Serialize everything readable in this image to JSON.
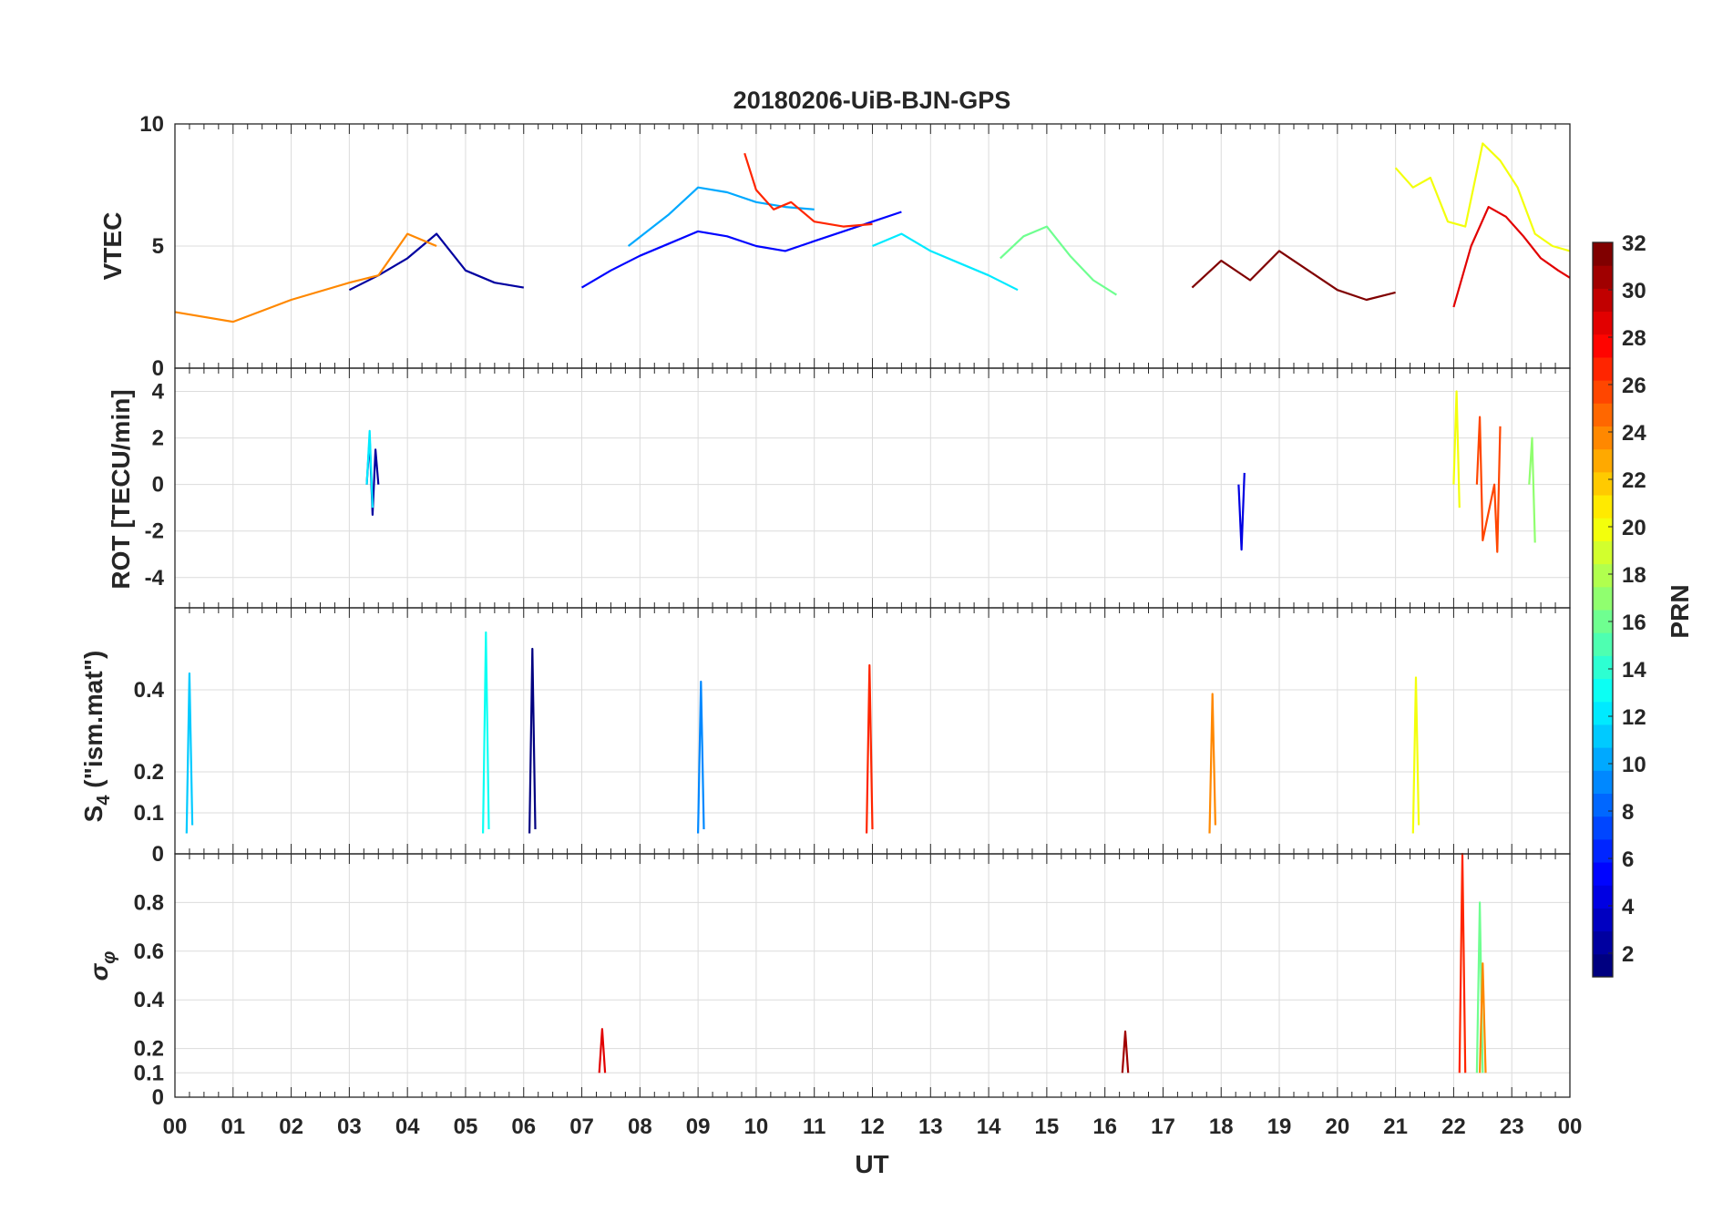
{
  "chart_data": {
    "type": "line",
    "title": "20180206-UiB-BJN-GPS",
    "xlabel": "UT",
    "x_ticks": [
      "00",
      "01",
      "02",
      "03",
      "04",
      "05",
      "06",
      "07",
      "08",
      "09",
      "10",
      "11",
      "12",
      "13",
      "14",
      "15",
      "16",
      "17",
      "18",
      "19",
      "20",
      "21",
      "22",
      "23",
      "00"
    ],
    "xlim": [
      0,
      24
    ],
    "grid": true,
    "colorbar": {
      "label": "PRN",
      "range": [
        1,
        32
      ],
      "ticks": [
        "2",
        "4",
        "6",
        "8",
        "10",
        "12",
        "14",
        "16",
        "18",
        "20",
        "22",
        "24",
        "26",
        "28",
        "30",
        "32"
      ],
      "colormap": "jet"
    },
    "panels": [
      {
        "id": "vtec",
        "ylabel": "VTEC",
        "ylim": [
          0,
          10
        ],
        "y_ticks": [
          "0",
          "5",
          "10"
        ],
        "series": [
          {
            "prn": 2,
            "x": [
              3.0,
              3.5,
              4.0,
              4.5,
              5.0,
              5.5,
              6.0
            ],
            "y": [
              3.2,
              3.8,
              4.5,
              5.5,
              4.0,
              3.5,
              3.3
            ]
          },
          {
            "prn": 5,
            "x": [
              7.0,
              7.5,
              8.0,
              8.5,
              9.0,
              9.5,
              10.0,
              10.5,
              11.0,
              11.5,
              12.0,
              12.5
            ],
            "y": [
              3.3,
              4.0,
              4.6,
              5.1,
              5.6,
              5.4,
              5.0,
              4.8,
              5.2,
              5.6,
              6.0,
              6.4
            ]
          },
          {
            "prn": 10,
            "x": [
              7.8,
              8.5,
              9.0,
              9.5,
              10.0,
              10.5,
              11.0
            ],
            "y": [
              5.0,
              6.3,
              7.4,
              7.2,
              6.8,
              6.6,
              6.5
            ]
          },
          {
            "prn": 12,
            "x": [
              12.0,
              12.5,
              13.0,
              13.5,
              14.0,
              14.5
            ],
            "y": [
              5.0,
              5.5,
              4.8,
              4.3,
              3.8,
              3.2
            ]
          },
          {
            "prn": 16,
            "x": [
              14.2,
              14.6,
              15.0,
              15.4,
              15.8,
              16.2
            ],
            "y": [
              4.5,
              5.4,
              5.8,
              4.6,
              3.6,
              3.0
            ]
          },
          {
            "prn": 20,
            "x": [
              21.0,
              21.3,
              21.6,
              21.9,
              22.2,
              22.5,
              22.8,
              23.1,
              23.4,
              23.7,
              24.0
            ],
            "y": [
              8.2,
              7.4,
              7.8,
              6.0,
              5.8,
              9.2,
              8.5,
              7.4,
              5.5,
              5.0,
              4.8
            ]
          },
          {
            "prn": 24,
            "x": [
              0.0,
              1.0,
              2.0,
              3.0,
              3.5,
              4.0,
              4.5
            ],
            "y": [
              2.3,
              1.9,
              2.8,
              3.5,
              3.8,
              5.5,
              5.0
            ]
          },
          {
            "prn": 27,
            "x": [
              9.8,
              10.0,
              10.3,
              10.6,
              11.0,
              11.5,
              12.0
            ],
            "y": [
              8.8,
              7.3,
              6.5,
              6.8,
              6.0,
              5.8,
              5.9
            ]
          },
          {
            "prn": 29,
            "x": [
              22.0,
              22.3,
              22.6,
              22.9,
              23.2,
              23.5,
              23.8,
              24.0
            ],
            "y": [
              2.5,
              5.0,
              6.6,
              6.2,
              5.4,
              4.5,
              4.0,
              3.7
            ]
          },
          {
            "prn": 32,
            "x": [
              17.5,
              18.0,
              18.5,
              19.0,
              19.5,
              20.0,
              20.5,
              21.0
            ],
            "y": [
              3.3,
              4.4,
              3.6,
              4.8,
              4.0,
              3.2,
              2.8,
              3.1
            ]
          }
        ]
      },
      {
        "id": "rot",
        "ylabel": "ROT [TECU/min]",
        "ylim": [
          -5.3,
          5.0
        ],
        "y_ticks": [
          "-4",
          "-2",
          "0",
          "2",
          "4"
        ],
        "series": [
          {
            "prn": 2,
            "x": [
              3.3,
              3.35,
              3.4,
              3.45,
              3.5
            ],
            "y": [
              0.0,
              2.0,
              -1.3,
              1.5,
              0.0
            ]
          },
          {
            "prn": 12,
            "x": [
              3.3,
              3.35,
              3.4
            ],
            "y": [
              0.0,
              2.3,
              -1.0
            ]
          },
          {
            "prn": 4,
            "x": [
              18.3,
              18.35,
              18.4
            ],
            "y": [
              0.0,
              -2.8,
              0.5
            ]
          },
          {
            "prn": 20,
            "x": [
              22.0,
              22.05,
              22.1
            ],
            "y": [
              0.0,
              4.0,
              -1.0
            ]
          },
          {
            "prn": 26,
            "x": [
              22.4,
              22.45,
              22.5,
              22.7,
              22.75,
              22.8
            ],
            "y": [
              0.0,
              2.9,
              -2.4,
              0.0,
              -2.9,
              2.5
            ]
          },
          {
            "prn": 17,
            "x": [
              23.3,
              23.35,
              23.4
            ],
            "y": [
              0.0,
              2.0,
              -2.5
            ]
          }
        ]
      },
      {
        "id": "s4",
        "ylabel": "S4 (\"ism.mat\")",
        "ylim": [
          0,
          0.6
        ],
        "y_ticks": [
          "0",
          "0.1",
          "0.2",
          "0.4"
        ],
        "series": [
          {
            "prn": 1,
            "x": [
              6.1,
              6.15,
              6.2
            ],
            "y": [
              0.05,
              0.5,
              0.06
            ]
          },
          {
            "prn": 13,
            "x": [
              5.3,
              5.35,
              5.4
            ],
            "y": [
              0.05,
              0.54,
              0.06
            ]
          },
          {
            "prn": 27,
            "x": [
              11.9,
              11.95,
              12.0
            ],
            "y": [
              0.05,
              0.46,
              0.06
            ]
          },
          {
            "prn": 11,
            "x": [
              0.2,
              0.25,
              0.3
            ],
            "y": [
              0.05,
              0.44,
              0.07
            ]
          },
          {
            "prn": 20,
            "x": [
              21.3,
              21.35,
              21.4
            ],
            "y": [
              0.05,
              0.43,
              0.07
            ]
          },
          {
            "prn": 24,
            "x": [
              17.8,
              17.85,
              17.9
            ],
            "y": [
              0.05,
              0.39,
              0.07
            ]
          },
          {
            "prn": 9,
            "x": [
              9.0,
              9.05,
              9.1
            ],
            "y": [
              0.05,
              0.42,
              0.06
            ]
          }
        ]
      },
      {
        "id": "sigma_phi",
        "ylabel": "σφ",
        "ylim": [
          0,
          1
        ],
        "y_ticks": [
          "0",
          "0.1",
          "0.2",
          "0.4",
          "0.6",
          "0.8"
        ],
        "series": [
          {
            "prn": 27,
            "x": [
              22.1,
              22.15,
              22.2
            ],
            "y": [
              0.1,
              1.0,
              0.1
            ]
          },
          {
            "prn": 16,
            "x": [
              22.4,
              22.45,
              22.5
            ],
            "y": [
              0.1,
              0.8,
              0.1
            ]
          },
          {
            "prn": 24,
            "x": [
              22.45,
              22.5,
              22.55
            ],
            "y": [
              0.1,
              0.55,
              0.1
            ]
          },
          {
            "prn": 29,
            "x": [
              7.3,
              7.35,
              7.4
            ],
            "y": [
              0.1,
              0.28,
              0.1
            ]
          },
          {
            "prn": 31,
            "x": [
              16.3,
              16.35,
              16.4
            ],
            "y": [
              0.1,
              0.27,
              0.1
            ]
          }
        ]
      }
    ]
  }
}
